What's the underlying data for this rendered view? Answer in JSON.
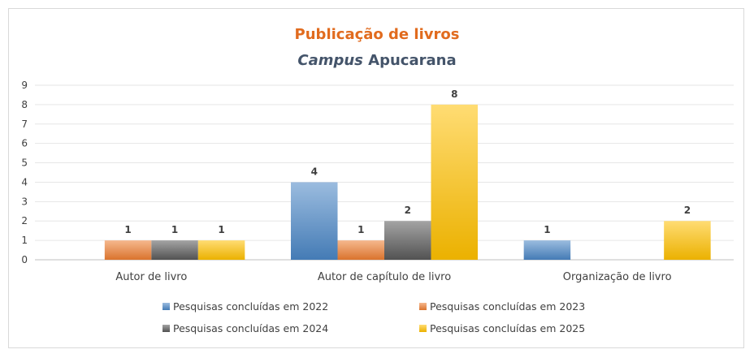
{
  "title": "Publicação de livros",
  "subtitle_italic": "Campus",
  "subtitle_rest": " Apucarana",
  "chart_data": {
    "type": "bar",
    "title": "Publicação de livros",
    "subtitle": "Campus Apucarana",
    "categories": [
      "Autor de livro",
      "Autor de capítulo de livro",
      "Organização de livro"
    ],
    "series": [
      {
        "name": "Pesquisas concluídas em 2022",
        "values": [
          null,
          4,
          1
        ],
        "color": "#4a86c5"
      },
      {
        "name": "Pesquisas concluídas em 2023",
        "values": [
          1,
          1,
          null
        ],
        "color": "#ed7d31"
      },
      {
        "name": "Pesquisas concluídas em 2024",
        "values": [
          1,
          2,
          null
        ],
        "color": "#595959"
      },
      {
        "name": "Pesquisas concluídas em 2025",
        "values": [
          1,
          8,
          2
        ],
        "color": "#ffc000"
      }
    ],
    "ylim": [
      0,
      9
    ],
    "yticks": [
      0,
      1,
      2,
      3,
      4,
      5,
      6,
      7,
      8,
      9
    ],
    "xlabel": "",
    "ylabel": "",
    "grid": true,
    "legend": "bottom"
  }
}
